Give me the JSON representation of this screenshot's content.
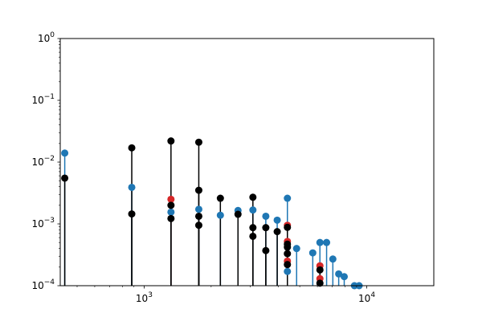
{
  "chart_data": {
    "type": "scatter",
    "subtype": "stem",
    "x_scale": "log",
    "y_scale": "log",
    "xlim": [
      420,
      20000
    ],
    "ylim": [
      0.0001,
      1
    ],
    "grid": false,
    "y_tick_labels": [
      {
        "value": 1,
        "base": "10",
        "exp": "0"
      },
      {
        "value": 0.1,
        "base": "10",
        "exp": "−1"
      },
      {
        "value": 0.01,
        "base": "10",
        "exp": "−2"
      },
      {
        "value": 0.001,
        "base": "10",
        "exp": "−3"
      },
      {
        "value": 0.0001,
        "base": "10",
        "exp": "−4"
      }
    ],
    "x_tick_labels": [
      {
        "value": 1000,
        "base": "10",
        "exp": "3"
      },
      {
        "value": 10000,
        "base": "10",
        "exp": "4"
      }
    ],
    "series": [
      {
        "color": "#1f77b4",
        "points": [
          [
            440,
            0.014
          ],
          [
            880,
            0.0039
          ],
          [
            1320,
            0.00155
          ],
          [
            1760,
            0.00172
          ],
          [
            2200,
            0.00138
          ],
          [
            2640,
            0.00165
          ],
          [
            3080,
            0.00168
          ],
          [
            3520,
            0.00133
          ],
          [
            3960,
            0.00115
          ],
          [
            4400,
            0.0026
          ],
          [
            4400,
            0.00017
          ],
          [
            4840,
            0.0004
          ],
          [
            5720,
            0.00034
          ],
          [
            6160,
            0.0005
          ],
          [
            6600,
            0.0005
          ],
          [
            7040,
            0.00027
          ],
          [
            7480,
            0.000155
          ],
          [
            7920,
            0.00014
          ],
          [
            8800,
            0.0001
          ],
          [
            9240,
            0.0001
          ]
        ]
      },
      {
        "color": "#d62728",
        "points": [
          [
            1320,
            0.0025
          ],
          [
            4400,
            0.00095
          ],
          [
            4400,
            0.00052
          ],
          [
            4400,
            0.00025
          ],
          [
            6160,
            0.00021
          ],
          [
            6160,
            0.00013
          ]
        ]
      },
      {
        "color": "#000000",
        "points": [
          [
            440,
            0.0055
          ],
          [
            880,
            0.017
          ],
          [
            880,
            0.00145
          ],
          [
            1320,
            0.022
          ],
          [
            1320,
            0.002
          ],
          [
            1320,
            0.00122
          ],
          [
            1760,
            0.021
          ],
          [
            1760,
            0.0035
          ],
          [
            1760,
            0.00133
          ],
          [
            1760,
            0.00095
          ],
          [
            2200,
            0.0026
          ],
          [
            2640,
            0.00143
          ],
          [
            3080,
            0.0027
          ],
          [
            3080,
            0.00087
          ],
          [
            3080,
            0.00063
          ],
          [
            3520,
            0.00087
          ],
          [
            3520,
            0.00037
          ],
          [
            3960,
            0.00075
          ],
          [
            4400,
            0.00088
          ],
          [
            4400,
            0.00047
          ],
          [
            4400,
            0.00042
          ],
          [
            4400,
            0.00033
          ],
          [
            4400,
            0.00022
          ],
          [
            6160,
            0.00018
          ],
          [
            6160,
            0.00011
          ]
        ]
      }
    ]
  }
}
